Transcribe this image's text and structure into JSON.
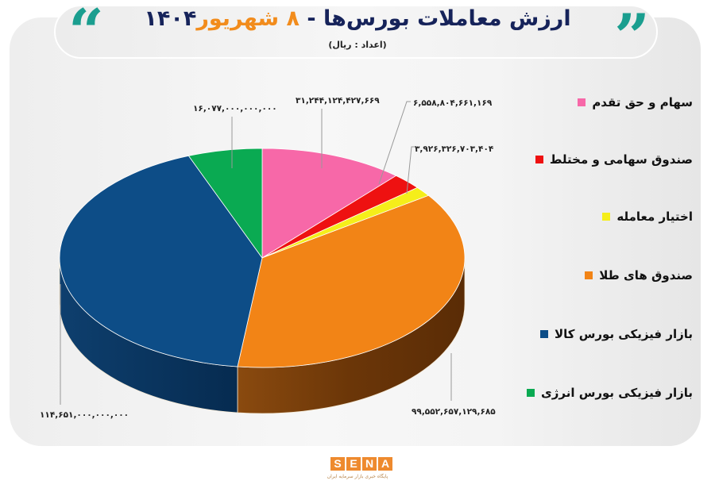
{
  "header": {
    "title_main": "ارزش معاملات بورس‌ها - ",
    "title_accent": "۸ شهریور",
    "title_year": "۱۴۰۴",
    "subtitle": "(اعداد : ریال)",
    "quote_open": "“",
    "quote_close": "”"
  },
  "legend": {
    "items": [
      {
        "label": "سهام و حق تقدم",
        "color": "#f768a8"
      },
      {
        "label": "صندوق سهامی و مختلط",
        "color": "#ee1111"
      },
      {
        "label": "اختیار معامله",
        "color": "#f5ee1a"
      },
      {
        "label": "صندوق های طلا",
        "color": "#f28416"
      },
      {
        "label": "بازار فیزیکی بورس کالا",
        "color": "#0d4d87"
      },
      {
        "label": "بازار فیزیکی بورس انرژی",
        "color": "#0aaa52"
      }
    ]
  },
  "labels": {
    "pink": "۳۱,۲۴۴,۱۲۴,۴۲۷,۶۶۹",
    "red": "۶,۵۵۸,۸۰۴,۶۶۱,۱۶۹",
    "yellow": "۳,۹۲۶,۳۲۶,۷۰۳,۴۰۴",
    "orange": "۹۹,۵۵۲,۶۵۷,۱۲۹,۶۸۵",
    "blue": "۱۱۴,۶۵۱,۰۰۰,۰۰۰,۰۰۰",
    "green": "۱۶,۰۷۷,۰۰۰,۰۰۰,۰۰۰"
  },
  "logo": {
    "letters": [
      "S",
      "E",
      "N",
      "A"
    ],
    "tagline": "پایگاه خبری بازار سرمایه ایران"
  },
  "chart_data": {
    "type": "pie",
    "title": "ارزش معاملات بورس‌ها - ۸ شهریور ۱۴۰۴",
    "subtitle": "(اعداد : ریال)",
    "unit": "Rial",
    "style": "3d-pie",
    "legend_position": "right",
    "categories": [
      "سهام و حق تقدم",
      "صندوق سهامی و مختلط",
      "اختیار معامله",
      "صندوق های طلا",
      "بازار فیزیکی بورس کالا",
      "بازار فیزیکی بورس انرژی"
    ],
    "values": [
      31244124427669,
      6558804661169,
      3926326703404,
      99552657129685,
      114651000000000,
      16077000000000
    ],
    "colors": [
      "#f768a8",
      "#ee1111",
      "#f5ee1a",
      "#f28416",
      "#0d4d87",
      "#0aaa52"
    ]
  }
}
